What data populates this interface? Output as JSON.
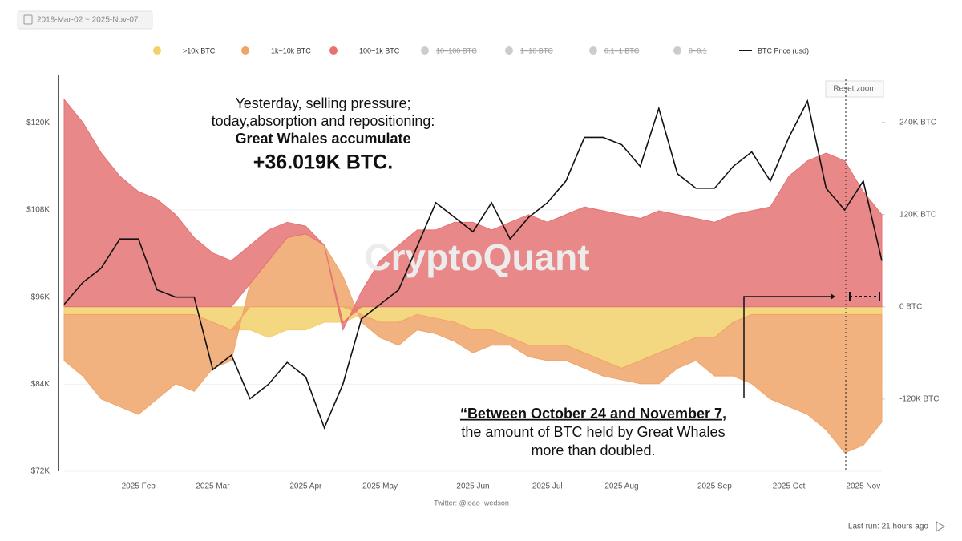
{
  "date_range": "2018-Mar-02 ~ 2025-Nov-07",
  "last_run": "Last run: 21 hours ago",
  "chart_data": {
    "type": "stacked_area_line",
    "watermark": "CryptoQuant",
    "reset_zoom": "Reset zoom",
    "credit": "Twitter: @joao_wedson",
    "annotations": [
      "Yesterday, selling pressure;",
      "today,absorption and repositioning:",
      "Great Whales accumulate",
      "+36.019K BTC.",
      "“Between October 24 and November 7,",
      "the amount of BTC held by Great Whales",
      "more than doubled."
    ],
    "categories": [
      null,
      null,
      null,
      null,
      "2025 Feb",
      null,
      null,
      null,
      "2025 Mar",
      null,
      null,
      null,
      null,
      "2025 Apr",
      null,
      null,
      null,
      "2025 May",
      null,
      null,
      null,
      null,
      "2025 Jun",
      null,
      null,
      null,
      "2025 Jul",
      null,
      null,
      null,
      "2025 Aug",
      null,
      null,
      null,
      null,
      "2025 Sep",
      null,
      null,
      null,
      "2025 Oct",
      null,
      null,
      null,
      "2025 Nov",
      null
    ],
    "series": [
      {
        "name": ">10k BTC",
        "color": "#f2d06b",
        "axis": "y2",
        "kind": "area",
        "values": [
          -10000,
          -10000,
          -10000,
          -10000,
          -10000,
          -10000,
          -10000,
          -10000,
          -20000,
          -30000,
          -30000,
          -40000,
          -30000,
          -30000,
          -20000,
          -20000,
          -10000,
          -20000,
          -20000,
          -10000,
          -15000,
          -20000,
          -30000,
          -30000,
          -40000,
          -50000,
          -50000,
          -50000,
          -60000,
          -70000,
          -80000,
          -70000,
          -60000,
          -50000,
          -40000,
          -40000,
          -20000,
          -10000,
          -10000,
          -10000,
          -10000,
          -10000,
          -10000,
          -10000,
          -10000
        ]
      },
      {
        "name": "1k~10k BTC",
        "color": "#f0a468",
        "axis": "y2",
        "kind": "area",
        "values": [
          -60000,
          -80000,
          -110000,
          -120000,
          -130000,
          -110000,
          -90000,
          -100000,
          -60000,
          -40000,
          30000,
          60000,
          90000,
          95000,
          80000,
          40000,
          -10000,
          -20000,
          -30000,
          -20000,
          -20000,
          -25000,
          -30000,
          -20000,
          -10000,
          -15000,
          -20000,
          -20000,
          -20000,
          -20000,
          -15000,
          -30000,
          -40000,
          -30000,
          -30000,
          -50000,
          -70000,
          -90000,
          -110000,
          -120000,
          -130000,
          -150000,
          -180000,
          -170000,
          -140000
        ]
      },
      {
        "name": "100~1k BTC",
        "color": "#e57373",
        "axis": "y2",
        "kind": "area",
        "values": [
          270000,
          240000,
          200000,
          170000,
          150000,
          140000,
          120000,
          90000,
          70000,
          60000,
          50000,
          40000,
          20000,
          10000,
          0,
          -10000,
          20000,
          60000,
          80000,
          100000,
          100000,
          110000,
          110000,
          100000,
          110000,
          120000,
          110000,
          120000,
          130000,
          125000,
          120000,
          115000,
          125000,
          120000,
          115000,
          110000,
          120000,
          125000,
          130000,
          170000,
          190000,
          200000,
          190000,
          150000,
          120000
        ]
      },
      {
        "name": "BTC Price (usd)",
        "color": "#111111",
        "axis": "y",
        "kind": "line",
        "values": [
          95000,
          98000,
          100000,
          104000,
          104000,
          97000,
          96000,
          96000,
          86000,
          88000,
          82000,
          84000,
          87000,
          85000,
          78000,
          84000,
          93000,
          95000,
          97000,
          103000,
          109000,
          107000,
          105000,
          109000,
          104000,
          107000,
          109000,
          112000,
          118000,
          118000,
          117000,
          114000,
          122000,
          113000,
          111000,
          111000,
          114000,
          116000,
          112000,
          118000,
          123000,
          111000,
          108000,
          112000,
          101000
        ]
      }
    ],
    "hidden_series": [
      {
        "name": "10~100 BTC"
      },
      {
        "name": "1~10 BTC"
      },
      {
        "name": "0.1~1 BTC"
      },
      {
        "name": "0~0.1"
      }
    ],
    "ylim": [
      72000,
      126000
    ],
    "yticks": [
      {
        "value": 72000,
        "label": "$72K"
      },
      {
        "value": 84000,
        "label": "$84K"
      },
      {
        "value": 96000,
        "label": "$96K"
      },
      {
        "value": 108000,
        "label": "$108K"
      },
      {
        "value": 120000,
        "label": "$120K"
      }
    ],
    "y2lim": [
      -214000,
      296000
    ],
    "y2ticks": [
      {
        "value": -120000,
        "label": "-120K BTC"
      },
      {
        "value": 0,
        "label": "0 BTC"
      },
      {
        "value": 120000,
        "label": "120K BTC"
      },
      {
        "value": 240000,
        "label": "240K BTC"
      }
    ],
    "grid": true
  }
}
